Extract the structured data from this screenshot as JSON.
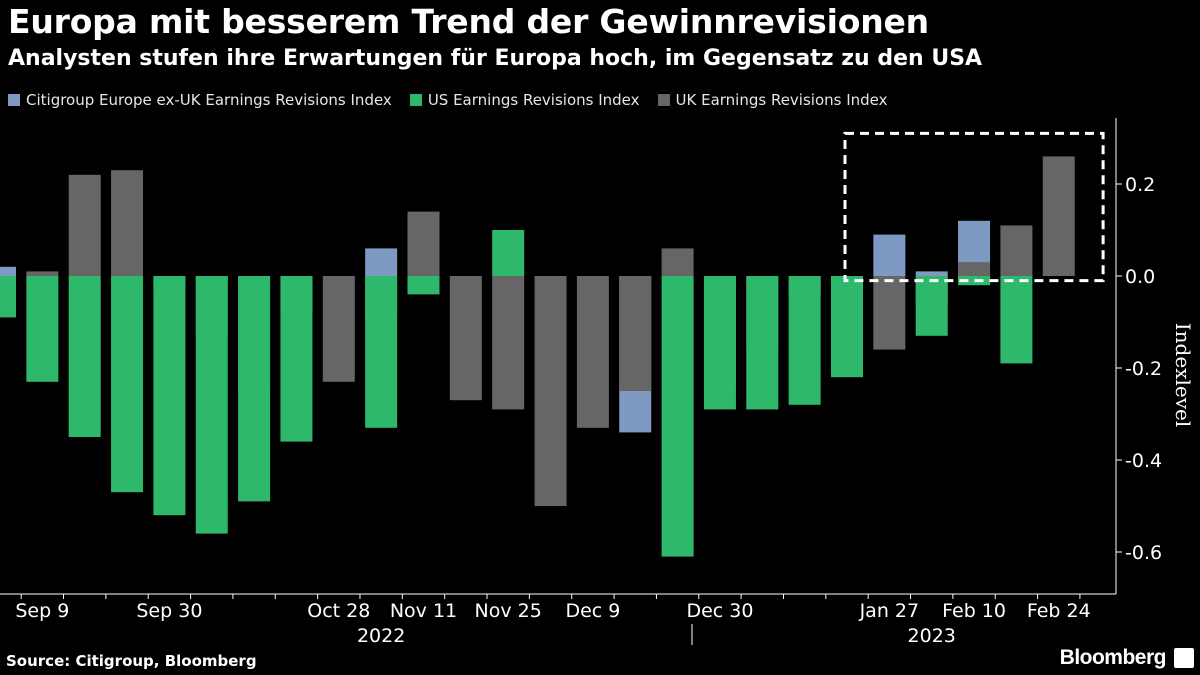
{
  "title": "Europa mit besserem Trend der Gewinnrevisionen",
  "subtitle": "Analysten stufen ihre Erwartungen für Europa hoch, im Gegensatz zu den USA",
  "source": "Source: Citigroup, Bloomberg",
  "brand": "Bloomberg",
  "colors": {
    "background": "#000000",
    "citi": "#7f9ac2",
    "us": "#2eb86c",
    "uk": "#666666",
    "highlight_box": "#ffffff"
  },
  "chart_data": {
    "type": "bar",
    "title": "Europa mit besserem Trend der Gewinnrevisionen",
    "subtitle": "Analysten stufen ihre Erwartungen für Europa hoch, im Gegensatz zu den USA",
    "ylabel": "Indexlevel",
    "ylim": [
      -0.69,
      0.31
    ],
    "yticks": [
      0.2,
      0.0,
      -0.2,
      -0.4,
      -0.6
    ],
    "ytick_labels": [
      "0.2",
      "0.0",
      "-0.2",
      "-0.4",
      "-0.6"
    ],
    "axis_side": "right",
    "bars_overlapping": true,
    "x": [
      "2022-09-02",
      "2022-09-09",
      "2022-09-16",
      "2022-09-23",
      "2022-09-30",
      "2022-10-07",
      "2022-10-14",
      "2022-10-21",
      "2022-10-28",
      "2022-11-04",
      "2022-11-11",
      "2022-11-18",
      "2022-11-25",
      "2022-12-02",
      "2022-12-09",
      "2022-12-16",
      "2022-12-23",
      "2022-12-30",
      "2023-01-06",
      "2023-01-13",
      "2023-01-20",
      "2023-01-27",
      "2023-02-03",
      "2023-02-10",
      "2023-02-17",
      "2023-02-24",
      "2023-03-03"
    ],
    "series": [
      {
        "name": "Citigroup Europe ex-UK Earnings Revisions Index",
        "color": "#7f9ac2",
        "values": [
          0.02,
          null,
          null,
          null,
          null,
          null,
          null,
          null,
          null,
          0.06,
          null,
          null,
          null,
          null,
          null,
          -0.34,
          null,
          null,
          null,
          null,
          null,
          0.09,
          0.01,
          0.12,
          null,
          null,
          null
        ]
      },
      {
        "name": "UK Earnings Revisions Index",
        "color": "#666666",
        "values": [
          -0.08,
          0.01,
          0.22,
          0.23,
          -0.03,
          -0.13,
          -0.25,
          -0.08,
          -0.23,
          -0.09,
          0.14,
          -0.27,
          -0.29,
          -0.5,
          -0.33,
          -0.25,
          0.06,
          -0.24,
          -0.16,
          -0.04,
          -0.06,
          -0.16,
          -0.06,
          0.03,
          0.11,
          0.26,
          null
        ]
      },
      {
        "name": "US Earnings Revisions Index",
        "color": "#2eb86c",
        "values": [
          -0.09,
          -0.23,
          -0.35,
          -0.47,
          -0.52,
          -0.56,
          -0.49,
          -0.36,
          null,
          -0.33,
          -0.04,
          null,
          0.1,
          null,
          null,
          null,
          -0.61,
          -0.29,
          -0.29,
          -0.28,
          -0.22,
          null,
          -0.13,
          -0.02,
          -0.19,
          null,
          null
        ]
      }
    ],
    "x_tick_labels": [
      {
        "label": "Sep 9",
        "x": "2022-09-09"
      },
      {
        "label": "Sep 30",
        "x": "2022-09-30"
      },
      {
        "label": "Oct 28",
        "x": "2022-10-28"
      },
      {
        "label": "Nov 11",
        "x": "2022-11-11"
      },
      {
        "label": "Nov 25",
        "x": "2022-11-25"
      },
      {
        "label": "Dec 9",
        "x": "2022-12-09"
      },
      {
        "label": "Dec 30",
        "x": "2022-12-30"
      },
      {
        "label": "Jan 27",
        "x": "2023-01-27"
      },
      {
        "label": "Feb 10",
        "x": "2023-02-10"
      },
      {
        "label": "Feb 24",
        "x": "2023-02-24"
      }
    ],
    "year_labels": [
      {
        "label": "2022",
        "x": "2022-11-04"
      },
      {
        "label": "2023",
        "x": "2023-02-03"
      }
    ],
    "highlight_region": {
      "x_from": "2023-01-20",
      "x_to": "2023-03-03",
      "y_from": -0.01,
      "y_to": 0.31,
      "style": "dashed"
    },
    "legend": {
      "placement": "top-left"
    },
    "grid": false
  }
}
